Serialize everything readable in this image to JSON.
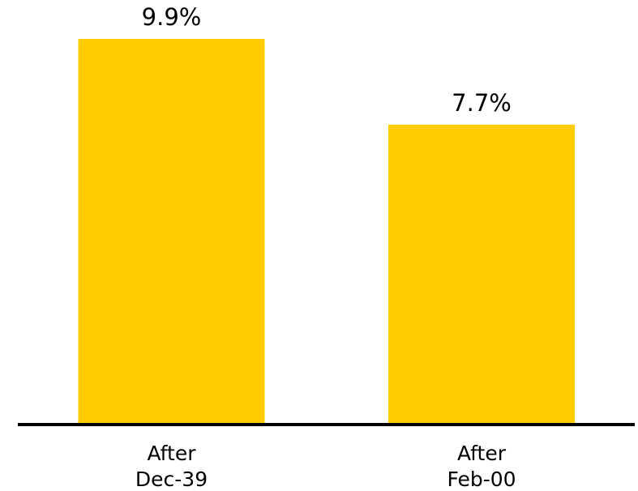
{
  "chart_data": {
    "type": "bar",
    "categories": [
      [
        "After",
        "Dec-39"
      ],
      [
        "After",
        "Feb-00"
      ]
    ],
    "values": [
      9.9,
      7.7
    ],
    "value_labels": [
      "9.9%",
      "7.7%"
    ],
    "unit": "%",
    "title": "",
    "xlabel": "",
    "ylabel": "",
    "ylim": [
      0,
      10.9
    ],
    "grid": false,
    "legend": "none",
    "colors": {
      "bar": "#FFCC00",
      "axis": "#000000",
      "text": "#000000",
      "background": "#FFFFFF"
    }
  }
}
